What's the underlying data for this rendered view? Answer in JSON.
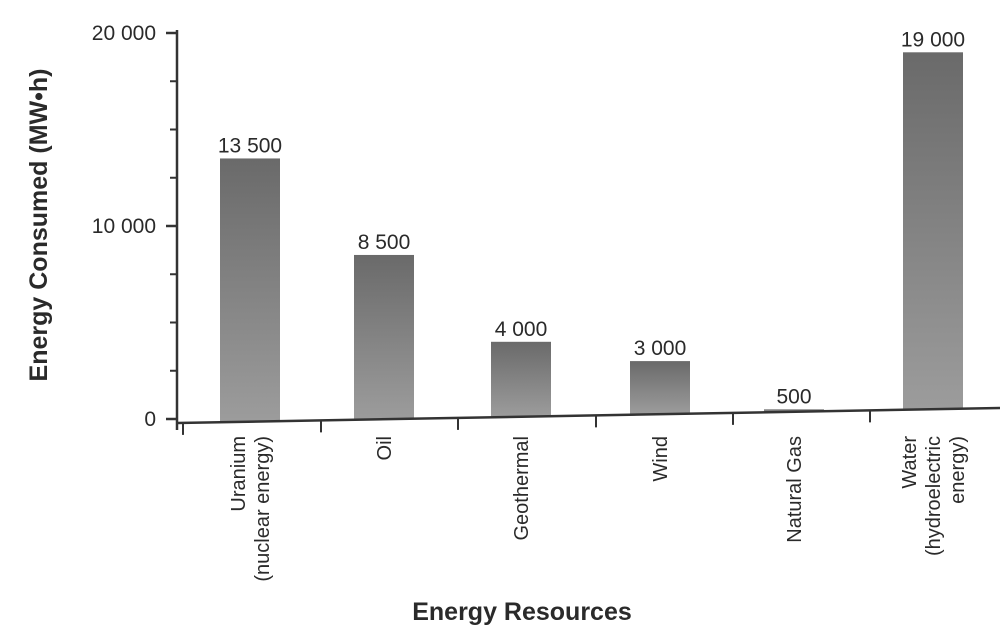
{
  "chart_data": {
    "type": "bar",
    "title": "",
    "xlabel": "Energy Resources",
    "ylabel": "Energy Consumed (MW•h)",
    "ylim": [
      0,
      20000
    ],
    "yticks": [
      {
        "value": 0,
        "label": "0"
      },
      {
        "value": 10000,
        "label": "10 000"
      },
      {
        "value": 20000,
        "label": "20 000"
      }
    ],
    "y_minor_tick_step": 2500,
    "grid": false,
    "categories": [
      [
        "Uranium",
        "(nuclear energy)"
      ],
      [
        "Oil"
      ],
      [
        "Geothermal"
      ],
      [
        "Wind"
      ],
      [
        "Natural Gas"
      ],
      [
        "Water",
        "(hydroelectric",
        "energy)"
      ]
    ],
    "values": [
      13500,
      8500,
      4000,
      3000,
      500,
      19000
    ],
    "data_labels": [
      "13 500",
      "8 500",
      "4 000",
      "3 000",
      "500",
      "19 000"
    ],
    "colors": {
      "bar_top": "#6a6a6a",
      "bar_bottom": "#9c9c9c",
      "axis": "#333333",
      "text": "#2a2a2a"
    }
  }
}
